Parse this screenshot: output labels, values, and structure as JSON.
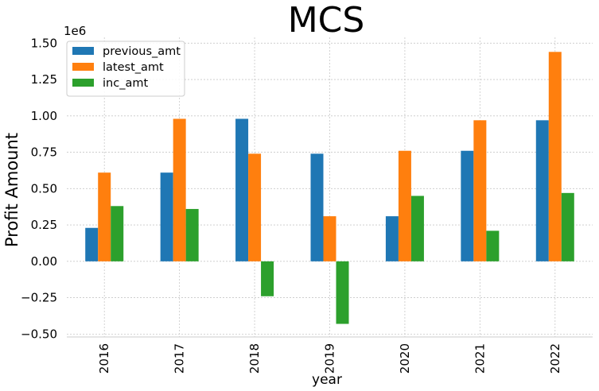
{
  "chart_data": {
    "type": "bar",
    "title": "MCS",
    "xlabel": "year",
    "ylabel": "Profit Amount",
    "y_scale_label": "1e6",
    "y_multiplier": 1000000,
    "ylim": [
      -0.52,
      1.54
    ],
    "yticks": [
      -0.5,
      -0.25,
      0.0,
      0.25,
      0.5,
      0.75,
      1.0,
      1.25,
      1.5
    ],
    "ytick_labels": [
      "−0.50",
      "−0.25",
      "0.00",
      "0.25",
      "0.50",
      "0.75",
      "1.00",
      "1.25",
      "1.50"
    ],
    "categories": [
      "2016",
      "2017",
      "2018",
      "2019",
      "2020",
      "2021",
      "2022"
    ],
    "series": [
      {
        "name": "previous_amt",
        "color": "#1f77b4",
        "values": [
          0.23,
          0.61,
          0.98,
          0.74,
          0.31,
          0.76,
          0.97
        ]
      },
      {
        "name": "latest_amt",
        "color": "#ff7f0e",
        "values": [
          0.61,
          0.98,
          0.74,
          0.31,
          0.76,
          0.97,
          1.44
        ]
      },
      {
        "name": "inc_amt",
        "color": "#2ca02c",
        "values": [
          0.38,
          0.36,
          -0.24,
          -0.43,
          0.45,
          0.21,
          0.47
        ]
      }
    ],
    "grid": true,
    "legend_position": "top-left"
  }
}
